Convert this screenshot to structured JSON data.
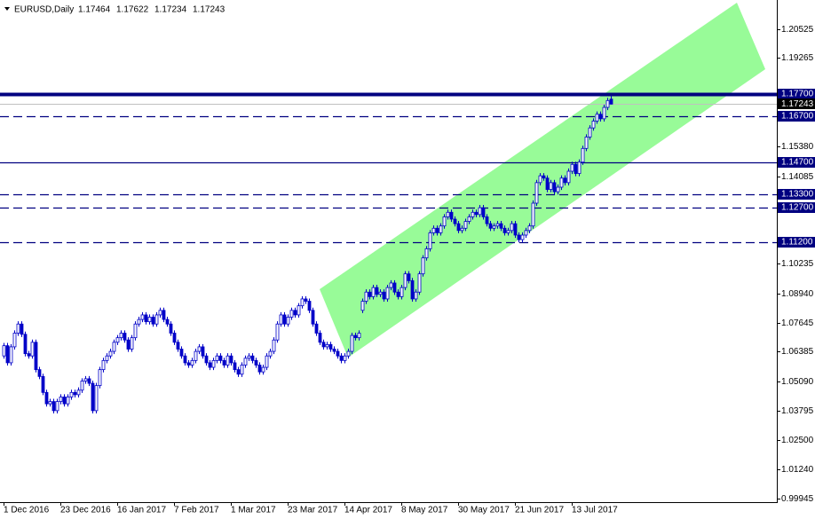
{
  "chart_data": {
    "type": "candlestick",
    "title": "EURUSD,Daily",
    "color": "#0000c8",
    "categories": [
      "1 Dec 2016",
      null,
      null,
      null,
      null,
      null,
      null,
      null,
      null,
      null,
      null,
      null,
      null,
      null,
      null,
      null,
      "23 Dec 2016",
      null,
      null,
      null,
      null,
      null,
      null,
      null,
      null,
      null,
      null,
      null,
      null,
      null,
      null,
      null,
      "16 Jan 2017",
      null,
      null,
      null,
      null,
      null,
      null,
      null,
      null,
      null,
      null,
      null,
      null,
      null,
      null,
      null,
      "7 Feb 2017",
      null,
      null,
      null,
      null,
      null,
      null,
      null,
      null,
      null,
      null,
      null,
      null,
      null,
      null,
      null,
      "1 Mar 2017",
      null,
      null,
      null,
      null,
      null,
      null,
      null,
      null,
      null,
      null,
      null,
      null,
      null,
      null,
      null,
      "23 Mar 2017",
      null,
      null,
      null,
      null,
      null,
      null,
      null,
      null,
      null,
      null,
      null,
      null,
      null,
      null,
      null,
      "14 Apr 2017",
      null,
      null,
      null,
      null,
      null,
      null,
      null,
      null,
      null,
      null,
      null,
      null,
      null,
      null,
      null,
      "8 May 2017",
      null,
      null,
      null,
      null,
      null,
      null,
      null,
      null,
      null,
      null,
      null,
      null,
      null,
      null,
      null,
      "30 May 2017",
      null,
      null,
      null,
      null,
      null,
      null,
      null,
      null,
      null,
      null,
      null,
      null,
      null,
      null,
      null,
      "21 Jun 2017",
      null,
      null,
      null,
      null,
      null,
      null,
      null,
      null,
      null,
      null,
      null,
      null,
      null,
      null,
      null,
      "13 Jul 2017",
      null,
      null,
      null,
      null,
      null,
      null,
      null,
      null,
      null,
      null,
      null
    ],
    "open": [
      1.062,
      1.0665,
      1.059,
      1.066,
      1.072,
      1.076,
      1.0715,
      1.063,
      1.062,
      1.068,
      1.056,
      1.053,
      1.046,
      1.041,
      1.042,
      1.038,
      1.042,
      1.044,
      1.041,
      1.044,
      1.046,
      1.045,
      1.047,
      1.051,
      1.052,
      1.05,
      1.038,
      1.049,
      1.056,
      1.06,
      1.062,
      1.064,
      1.068,
      1.07,
      1.072,
      1.069,
      1.065,
      1.07,
      1.076,
      1.078,
      1.08,
      1.077,
      1.079,
      1.076,
      1.08,
      1.082,
      1.078,
      1.076,
      1.072,
      1.068,
      1.065,
      1.062,
      1.059,
      1.058,
      1.06,
      1.064,
      1.066,
      1.062,
      1.059,
      1.057,
      1.06,
      1.062,
      1.06,
      1.058,
      1.062,
      1.059,
      1.056,
      1.054,
      1.058,
      1.061,
      1.062,
      1.06,
      1.058,
      1.055,
      1.057,
      1.062,
      1.064,
      1.069,
      1.076,
      1.08,
      1.076,
      1.079,
      1.082,
      1.08,
      1.084,
      1.087,
      1.086,
      1.082,
      1.076,
      1.072,
      1.068,
      1.066,
      1.067,
      1.065,
      1.064,
      1.062,
      1.06,
      1.062,
      1.064,
      1.071,
      1.07,
      1.082,
      1.086,
      1.09,
      1.088,
      1.092,
      1.089,
      1.09,
      1.087,
      1.092,
      1.094,
      1.09,
      1.088,
      1.092,
      1.098,
      1.095,
      1.087,
      1.09,
      1.098,
      1.105,
      1.109,
      1.116,
      1.118,
      1.116,
      1.119,
      1.123,
      1.125,
      1.122,
      1.12,
      1.117,
      1.118,
      1.121,
      1.123,
      1.125,
      1.124,
      1.127,
      1.123,
      1.12,
      1.118,
      1.119,
      1.12,
      1.118,
      1.116,
      1.117,
      1.12,
      1.115,
      1.113,
      1.115,
      1.117,
      1.119,
      1.129,
      1.138,
      1.141,
      1.14,
      1.135,
      1.138,
      1.134,
      1.136,
      1.14,
      1.138,
      1.143,
      1.146,
      1.142,
      1.147,
      1.153,
      1.158,
      1.162,
      1.165,
      1.168,
      1.166,
      1.171,
      1.17464
    ],
    "high": [
      1.0677,
      1.0677,
      1.0672,
      1.0732,
      1.0772,
      1.0772,
      1.0727,
      1.0642,
      1.0692,
      1.0692,
      1.0572,
      1.0542,
      1.0472,
      1.0432,
      1.0432,
      1.0432,
      1.0452,
      1.0452,
      1.0452,
      1.0472,
      1.0472,
      1.0482,
      1.0522,
      1.0532,
      1.0532,
      1.0512,
      1.0502,
      1.0572,
      1.0612,
      1.0632,
      1.0652,
      1.0692,
      1.0712,
      1.0732,
      1.0732,
      1.0702,
      1.0712,
      1.0772,
      1.0792,
      1.0812,
      1.0812,
      1.0802,
      1.0802,
      1.0812,
      1.0832,
      1.0832,
      1.0792,
      1.0772,
      1.0732,
      1.0692,
      1.0662,
      1.0632,
      1.0602,
      1.0612,
      1.0652,
      1.0672,
      1.0672,
      1.0632,
      1.0602,
      1.0612,
      1.0632,
      1.0632,
      1.0612,
      1.0632,
      1.0632,
      1.0602,
      1.0572,
      1.0592,
      1.0622,
      1.0632,
      1.0632,
      1.0612,
      1.0592,
      1.0582,
      1.0632,
      1.0652,
      1.0702,
      1.0772,
      1.0812,
      1.0812,
      1.0802,
      1.0832,
      1.0832,
      1.0852,
      1.0882,
      1.0882,
      1.0872,
      1.0832,
      1.0772,
      1.0732,
      1.0692,
      1.0682,
      1.0682,
      1.0662,
      1.0652,
      1.0632,
      1.0632,
      1.0652,
      1.0722,
      1.0722,
      1.0732,
      1.0872,
      1.0912,
      1.0912,
      1.0932,
      1.0932,
      1.0912,
      1.0912,
      1.0932,
      1.0952,
      1.0952,
      1.0912,
      1.0932,
      1.0992,
      1.0992,
      1.0962,
      1.0912,
      1.0992,
      1.1062,
      1.1102,
      1.1172,
      1.1192,
      1.1192,
      1.1202,
      1.1242,
      1.1262,
      1.1262,
      1.1232,
      1.1212,
      1.1192,
      1.1222,
      1.1242,
      1.1262,
      1.1262,
      1.1282,
      1.1282,
      1.1242,
      1.1212,
      1.1202,
      1.1212,
      1.1212,
      1.1192,
      1.1182,
      1.1212,
      1.1212,
      1.1162,
      1.1162,
      1.1182,
      1.1202,
      1.1302,
      1.1392,
      1.1422,
      1.1422,
      1.1412,
      1.1392,
      1.1392,
      1.1372,
      1.1412,
      1.1412,
      1.1442,
      1.1472,
      1.1472,
      1.1482,
      1.1542,
      1.1592,
      1.1632,
      1.1662,
      1.1692,
      1.1692,
      1.1722,
      1.1752,
      1.17622
    ],
    "low": [
      1.0608,
      1.0578,
      1.0578,
      1.0648,
      1.0708,
      1.0703,
      1.0618,
      1.0608,
      1.0608,
      1.0548,
      1.0518,
      1.0448,
      1.0398,
      1.0398,
      1.0368,
      1.0368,
      1.0408,
      1.0398,
      1.0398,
      1.0428,
      1.0438,
      1.0438,
      1.0458,
      1.0498,
      1.0488,
      1.0368,
      1.0368,
      1.0478,
      1.0548,
      1.0588,
      1.0608,
      1.0628,
      1.0668,
      1.0688,
      1.0678,
      1.0638,
      1.0638,
      1.0688,
      1.0748,
      1.0768,
      1.0758,
      1.0758,
      1.0748,
      1.0748,
      1.0788,
      1.0768,
      1.0748,
      1.0708,
      1.0668,
      1.0638,
      1.0608,
      1.0578,
      1.0568,
      1.0568,
      1.0588,
      1.0628,
      1.0608,
      1.0578,
      1.0558,
      1.0558,
      1.0588,
      1.0588,
      1.0568,
      1.0568,
      1.0578,
      1.0548,
      1.0528,
      1.0528,
      1.0568,
      1.0598,
      1.0588,
      1.0568,
      1.0538,
      1.0538,
      1.0558,
      1.0608,
      1.0628,
      1.0678,
      1.0748,
      1.0748,
      1.0748,
      1.0778,
      1.0788,
      1.0788,
      1.0828,
      1.0848,
      1.0808,
      1.0748,
      1.0708,
      1.0668,
      1.0648,
      1.0648,
      1.0638,
      1.0628,
      1.0608,
      1.0588,
      1.0588,
      1.0608,
      1.0628,
      1.0688,
      1.0688,
      1.0808,
      1.0848,
      1.0868,
      1.0868,
      1.0878,
      1.0878,
      1.0858,
      1.0858,
      1.0908,
      1.0888,
      1.0868,
      1.0868,
      1.0908,
      1.0938,
      1.0858,
      1.0858,
      1.0888,
      1.0968,
      1.1038,
      1.1078,
      1.1148,
      1.1148,
      1.1148,
      1.1178,
      1.1218,
      1.1208,
      1.1188,
      1.1158,
      1.1158,
      1.1168,
      1.1198,
      1.1218,
      1.1228,
      1.1228,
      1.1218,
      1.1188,
      1.1168,
      1.1168,
      1.1178,
      1.1168,
      1.1148,
      1.1148,
      1.1158,
      1.1138,
      1.1118,
      1.1118,
      1.1138,
      1.1158,
      1.1178,
      1.1278,
      1.1368,
      1.1388,
      1.1338,
      1.1338,
      1.1328,
      1.1328,
      1.1348,
      1.1368,
      1.1368,
      1.1418,
      1.1408,
      1.1408,
      1.1458,
      1.1518,
      1.1568,
      1.1608,
      1.1638,
      1.1648,
      1.1648,
      1.1698,
      1.17234
    ],
    "close": [
      1.0665,
      1.059,
      1.066,
      1.072,
      1.076,
      1.0715,
      1.063,
      1.062,
      1.068,
      1.056,
      1.053,
      1.046,
      1.041,
      1.042,
      1.038,
      1.042,
      1.044,
      1.041,
      1.044,
      1.046,
      1.045,
      1.047,
      1.051,
      1.052,
      1.05,
      1.038,
      1.049,
      1.056,
      1.06,
      1.062,
      1.064,
      1.068,
      1.07,
      1.072,
      1.069,
      1.065,
      1.07,
      1.076,
      1.078,
      1.08,
      1.077,
      1.079,
      1.076,
      1.08,
      1.082,
      1.078,
      1.076,
      1.072,
      1.068,
      1.065,
      1.062,
      1.059,
      1.058,
      1.06,
      1.064,
      1.066,
      1.062,
      1.059,
      1.057,
      1.06,
      1.062,
      1.06,
      1.058,
      1.062,
      1.059,
      1.056,
      1.054,
      1.058,
      1.061,
      1.062,
      1.06,
      1.058,
      1.055,
      1.057,
      1.062,
      1.064,
      1.069,
      1.076,
      1.08,
      1.076,
      1.079,
      1.082,
      1.08,
      1.084,
      1.087,
      1.086,
      1.082,
      1.076,
      1.072,
      1.068,
      1.066,
      1.067,
      1.065,
      1.064,
      1.062,
      1.06,
      1.062,
      1.064,
      1.071,
      1.07,
      1.072,
      1.086,
      1.09,
      1.088,
      1.092,
      1.089,
      1.09,
      1.087,
      1.092,
      1.094,
      1.09,
      1.088,
      1.092,
      1.098,
      1.095,
      1.087,
      1.09,
      1.098,
      1.105,
      1.109,
      1.116,
      1.118,
      1.116,
      1.119,
      1.123,
      1.125,
      1.122,
      1.12,
      1.117,
      1.118,
      1.121,
      1.123,
      1.125,
      1.124,
      1.127,
      1.123,
      1.12,
      1.118,
      1.119,
      1.12,
      1.118,
      1.116,
      1.117,
      1.12,
      1.115,
      1.113,
      1.115,
      1.117,
      1.119,
      1.129,
      1.138,
      1.141,
      1.14,
      1.135,
      1.138,
      1.134,
      1.136,
      1.14,
      1.138,
      1.143,
      1.146,
      1.142,
      1.147,
      1.153,
      1.158,
      1.162,
      1.165,
      1.168,
      1.166,
      1.171,
      1.174,
      1.17243
    ],
    "ylim": [
      0.99789,
      1.21809
    ],
    "yticks": [
      1.20525,
      1.19265,
      {
        "value": 1.1538,
        "label": "1.15380"
      },
      1.14085,
      1.10235,
      {
        "value": 1.0894,
        "label": "1.08940"
      },
      1.07645,
      1.06385,
      {
        "value": 1.0509,
        "label": "1.05090"
      },
      1.03795,
      {
        "value": 1.025,
        "label": "1.02500"
      },
      {
        "value": 1.0124,
        "label": "1.01240"
      },
      0.99945
    ],
    "levels": [
      {
        "value": 1.177,
        "label": "1.17700",
        "style": "thick"
      },
      {
        "value": 1.167,
        "label": "1.16700",
        "style": "dashed"
      },
      {
        "value": 1.147,
        "label": "1.14700",
        "style": "solid"
      },
      {
        "value": 1.133,
        "label": "1.13300",
        "style": "dashed"
      },
      {
        "value": 1.127,
        "label": "1.12700",
        "style": "dashed"
      },
      {
        "value": 1.112,
        "label": "1.11200",
        "style": "dashed"
      }
    ],
    "level_color": "#000080",
    "channel_color": "#98fb98"
  }
}
